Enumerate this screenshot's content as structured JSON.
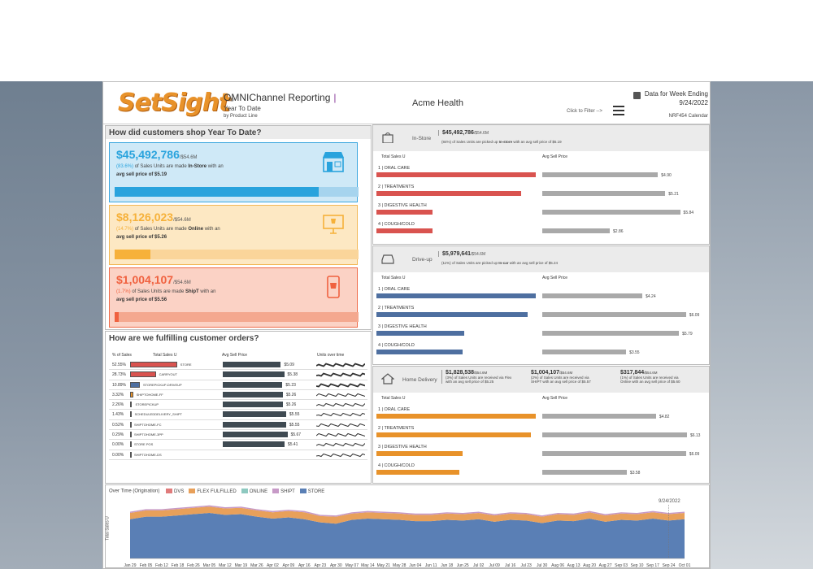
{
  "header": {
    "logo": "SetSight",
    "title": "OMNIChannel Reporting",
    "subtitle": "Year To Date",
    "subtitle2": "by Product Line",
    "client": "Acme Health",
    "filter_label": "Click to Filter -->",
    "data_week_label": "Data for Week Ending",
    "data_week_date": "9/24/2022",
    "calendar": "NRF454 Calendar"
  },
  "shop": {
    "title": "How did customers shop Year To Date?",
    "kpis": [
      {
        "amount": "$45,492,786",
        "total": "/$54.6M",
        "pct": "(83.6%)",
        "line1": "of Sales Units are made",
        "channel": "In-Store",
        "line1b": "with an",
        "line2": "avg sell price of $5.19",
        "fill": 0.836,
        "color": "#29a3dd",
        "icon": "store-icon"
      },
      {
        "amount": "$8,126,023",
        "total": "/$54.6M",
        "pct": "(14.7%)",
        "line1": "of Sales Units are made",
        "channel": "Online",
        "line1b": "with an",
        "line2": "avg sell price of $5.26",
        "fill": 0.147,
        "color": "#f6b13a",
        "icon": "computer-icon"
      },
      {
        "amount": "$1,004,107",
        "total": "/$54.6M",
        "pct": "(1.7%)",
        "line1": "of Sales Units are made",
        "channel": "ShipT",
        "line1b": "with an",
        "line2": "avg sell price of $5.56",
        "fill": 0.017,
        "color": "#f0613f",
        "icon": "mobile-cart-icon"
      }
    ]
  },
  "fulfill": {
    "title": "How are we fulfilling customer orders?",
    "cols": [
      "% of Sales",
      "Total Sales U",
      "Avg Sell Price",
      "Units over time"
    ],
    "rows": [
      {
        "pct": "52.55%",
        "name": "STORE",
        "share": 0.5255,
        "price": "$5.09",
        "price_v": 5.09,
        "hl": "#d9534f"
      },
      {
        "pct": "28.73%",
        "name": "CARRYOUT",
        "share": 0.2873,
        "price": "$5.38",
        "price_v": 5.38,
        "hl": "#d9534f"
      },
      {
        "pct": "10.89%",
        "name": "STOREPICKUP-DRIVEUP",
        "share": 0.1089,
        "price": "$5.23",
        "price_v": 5.23,
        "hl": "#4e6fa0"
      },
      {
        "pct": "3.32%",
        "name": "SHIPTOHOME-FF",
        "share": 0.0332,
        "price": "$5.26",
        "price_v": 5.26,
        "hl": "#e8922a"
      },
      {
        "pct": "2.26%",
        "name": "STOREPICKUP",
        "share": 0.0226,
        "price": "$5.26",
        "price_v": 5.26,
        "hl": "#888"
      },
      {
        "pct": "1.43%",
        "name": "SCHEDULEDDELIVERY_SHIPT",
        "share": 0.0143,
        "price": "$5.55",
        "price_v": 5.55,
        "hl": "#888"
      },
      {
        "pct": "0.52%",
        "name": "SHIPTOHOME-FC",
        "share": 0.0052,
        "price": "$5.55",
        "price_v": 5.55,
        "hl": "#888"
      },
      {
        "pct": "0.29%",
        "name": "SHIPTOHOME-3PP",
        "share": 0.0029,
        "price": "$5.67",
        "price_v": 5.67,
        "hl": "#888"
      },
      {
        "pct": "0.00%",
        "name": "STORE POS",
        "share": 0.0,
        "price": "$5.41",
        "price_v": 5.41,
        "hl": "#888"
      },
      {
        "pct": "0.00%",
        "name": "SHIPTOHOME-DS",
        "share": 0.0,
        "price": "",
        "price_v": 0,
        "hl": "#888"
      }
    ]
  },
  "channels": [
    {
      "label": "In-Store",
      "icon": "bag-icon",
      "amount": "$45,492,786",
      "total": "/$54.6M",
      "note_pct": "(84%)",
      "note": "of Sales Units are picked up",
      "note_bold": "In-store",
      "note2": "with an avg sell price of $5.19",
      "color": "#d9534f",
      "cats": [
        "1 | ORAL CARE",
        "2 | TREATMENTS",
        "3 | DIGESTIVE HEALTH",
        "4 | COUGH/COLD"
      ],
      "units": [
        1.0,
        0.91,
        0.35,
        0.35
      ],
      "prices": [
        "$4.90",
        "$5.21",
        "$5.84",
        "$2.86"
      ],
      "price_v": [
        4.9,
        5.21,
        5.84,
        2.86
      ]
    },
    {
      "label": "Drive-up",
      "icon": "car-icon",
      "amount": "$5,979,641",
      "total": "/$54.6M",
      "note_pct": "(11%)",
      "note": "of Sales Units are picked up",
      "note_bold": "In-car",
      "note2": "with an avg sell price of $5.24",
      "color": "#4e6fa0",
      "cats": [
        "1 | ORAL CARE",
        "2 | TREATMENTS",
        "3 | DIGESTIVE HEALTH",
        "4 | COUGH/COLD"
      ],
      "units": [
        1.0,
        0.95,
        0.55,
        0.54
      ],
      "prices": [
        "$4.24",
        "$6.09",
        "$5.79",
        "$3.55"
      ],
      "price_v": [
        4.24,
        6.09,
        5.79,
        3.55
      ]
    },
    {
      "label": "Home Delivery",
      "icon": "home-icon",
      "amount": "",
      "subs": [
        {
          "amount": "$1,828,538",
          "total": "/$54.6M",
          "l1": "(3%) of Sales Units are received via Flex",
          "l2": "with an avg sell price of $5.25"
        },
        {
          "amount": "$1,004,107",
          "total": "/$54.6M",
          "l1": "(2%) of Sales Units are received via",
          "l2": "SHIPT with an avg sell price of $5.57"
        },
        {
          "amount": "$317,844",
          "total": "/$54.6M",
          "l1": "(1%) of Sales Units are received via",
          "l2": "Online with an avg sell price of $5.60"
        }
      ],
      "color": "#e8922a",
      "cats": [
        "1 | ORAL CARE",
        "2 | TREATMENTS",
        "3 | DIGESTIVE HEALTH",
        "4 | COUGH/COLD"
      ],
      "units": [
        1.0,
        0.97,
        0.54,
        0.52
      ],
      "prices": [
        "$4.82",
        "$6.13",
        "$6.09",
        "$3.58"
      ],
      "price_v": [
        4.82,
        6.13,
        6.09,
        3.58
      ]
    }
  ],
  "col_labels": {
    "units": "Total Sales U",
    "price": "Avg Sell Price"
  },
  "chart_data": {
    "type": "area",
    "title": "Over Time (Origination)",
    "ylabel": "Total Sales U",
    "annotation": "9/24/2022",
    "legend": [
      "DVS",
      "FLEX FULFILLED",
      "ONLINE",
      "SHIPT",
      "STORE"
    ],
    "legend_colors": [
      "#e07b7b",
      "#e8a05a",
      "#8ec9c0",
      "#c79ac7",
      "#5a7fb5"
    ],
    "x": [
      "Jan 29",
      "Feb 05",
      "Feb 12",
      "Feb 18",
      "Feb 26",
      "Mar 05",
      "Mar 12",
      "Mar 19",
      "Mar 26",
      "Apr 02",
      "Apr 09",
      "Apr 16",
      "Apr 23",
      "Apr 30",
      "May 07",
      "May 14",
      "May 21",
      "May 28",
      "Jun 04",
      "Jun 11",
      "Jun 18",
      "Jun 25",
      "Jul 02",
      "Jul 09",
      "Jul 16",
      "Jul 23",
      "Jul 30",
      "Aug 06",
      "Aug 13",
      "Aug 20",
      "Aug 27",
      "Sep 03",
      "Sep 10",
      "Sep 17",
      "Sep 24",
      "Oct 01"
    ],
    "series": [
      {
        "name": "STORE",
        "values": [
          62,
          66,
          66,
          68,
          70,
          72,
          69,
          70,
          66,
          63,
          65,
          62,
          57,
          55,
          61,
          63,
          62,
          61,
          59,
          59,
          61,
          60,
          62,
          58,
          61,
          60,
          56,
          60,
          59,
          63,
          58,
          61,
          60,
          63,
          60,
          62
        ]
      },
      {
        "name": "FLEX FULFILLED",
        "values": [
          10,
          10,
          10,
          10,
          10,
          10,
          10,
          10,
          10,
          10,
          10,
          11,
          10,
          11,
          10,
          10,
          10,
          10,
          10,
          10,
          10,
          10,
          10,
          10,
          10,
          10,
          10,
          10,
          10,
          10,
          10,
          10,
          10,
          10,
          10,
          10
        ]
      },
      {
        "name": "SHIPT",
        "values": [
          2,
          2,
          2,
          2,
          2,
          2,
          2,
          2,
          2,
          2,
          2,
          2,
          2,
          2,
          2,
          2,
          2,
          2,
          2,
          2,
          2,
          2,
          2,
          2,
          2,
          2,
          2,
          2,
          2,
          2,
          2,
          2,
          2,
          2,
          2,
          2
        ]
      }
    ]
  }
}
